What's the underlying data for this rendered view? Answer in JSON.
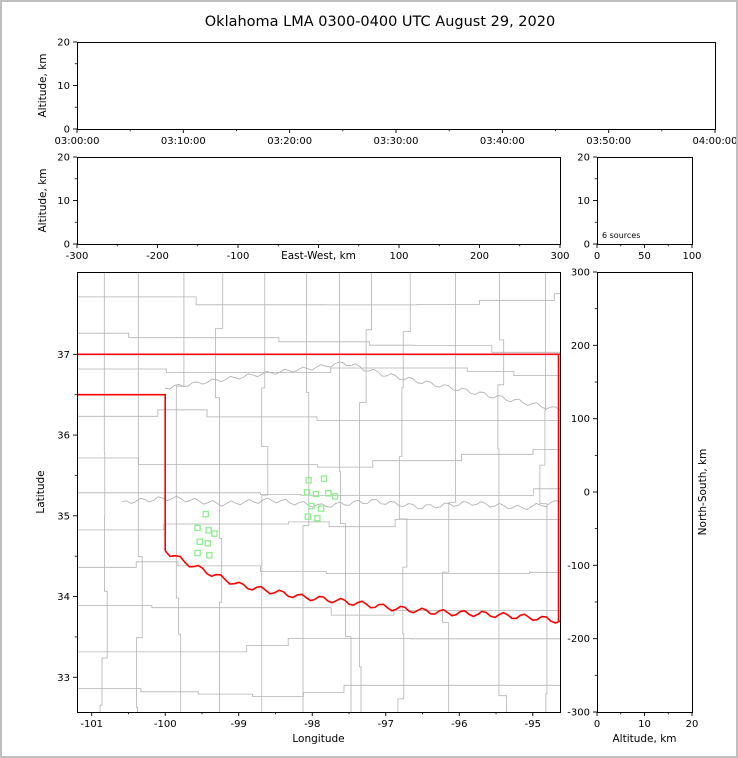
{
  "title": "Oklahoma LMA 0300-0400 UTC August 29, 2020",
  "colors": {
    "background": "#ffffff",
    "outer_border": "#bfbfbf",
    "axis": "#000000",
    "county_lines": "#b3b3b3",
    "rivers": "#b3b3b3",
    "state_border": "#ff0000",
    "station_marker": "#90ee90"
  },
  "chart_data": [
    {
      "id": "time_height",
      "type": "scatter",
      "xlabel": "",
      "ylabel": "Altitude, km",
      "xticks": [
        "03:00:00",
        "03:10:00",
        "03:20:00",
        "03:30:00",
        "03:40:00",
        "03:50:00",
        "04:00:00"
      ],
      "yticks": [
        0,
        10,
        20
      ],
      "ylim": [
        0,
        20
      ],
      "points": []
    },
    {
      "id": "ew_height",
      "type": "scatter",
      "xlabel": "East-West, km",
      "ylabel": "Altitude, km",
      "xticks": [
        -300,
        -200,
        -100,
        0,
        100,
        200,
        300
      ],
      "xtick_labels": [
        "-300",
        "-200",
        "-100",
        "",
        "100",
        "200",
        "300"
      ],
      "xlim": [
        -300,
        300
      ],
      "yticks": [
        0,
        10,
        20
      ],
      "ylim": [
        0,
        20
      ],
      "points": []
    },
    {
      "id": "source_histogram",
      "type": "histogram",
      "annotation": "6 sources",
      "xticks": [
        0,
        50,
        100
      ],
      "xlim": [
        0,
        100
      ],
      "yticks": [
        0,
        10,
        20
      ],
      "ylim": [
        0,
        20
      ],
      "points": []
    },
    {
      "id": "plan_view_map",
      "type": "scatter",
      "xlabel": "Longitude",
      "ylabel": "Latitude",
      "xticks": [
        -101,
        -100,
        -99,
        -98,
        -97,
        -96,
        -95
      ],
      "yticks": [
        33,
        34,
        35,
        36,
        37
      ],
      "xlim": [
        -101.2,
        -94.63
      ],
      "ylim": [
        32.57,
        38.02
      ],
      "stations_lon_lat": [
        [
          -98.05,
          35.44
        ],
        [
          -97.84,
          35.46
        ],
        [
          -98.07,
          35.29
        ],
        [
          -97.95,
          35.27
        ],
        [
          -97.78,
          35.28
        ],
        [
          -97.69,
          35.24
        ],
        [
          -98.01,
          35.12
        ],
        [
          -97.88,
          35.09
        ],
        [
          -98.06,
          34.99
        ],
        [
          -97.93,
          34.97
        ],
        [
          -99.45,
          35.02
        ],
        [
          -99.56,
          34.85
        ],
        [
          -99.41,
          34.82
        ],
        [
          -99.33,
          34.78
        ],
        [
          -99.53,
          34.68
        ],
        [
          -99.42,
          34.66
        ],
        [
          -99.56,
          34.54
        ],
        [
          -99.4,
          34.51
        ]
      ],
      "points": []
    },
    {
      "id": "ns_height",
      "type": "scatter",
      "xlabel": "Altitude, km",
      "ylabel": "North-South, km",
      "xticks": [
        0,
        10,
        20
      ],
      "xlim": [
        0,
        20
      ],
      "yticks": [
        -300,
        -200,
        -100,
        0,
        100,
        200,
        300
      ],
      "ylim": [
        -300,
        300
      ],
      "points": []
    }
  ]
}
